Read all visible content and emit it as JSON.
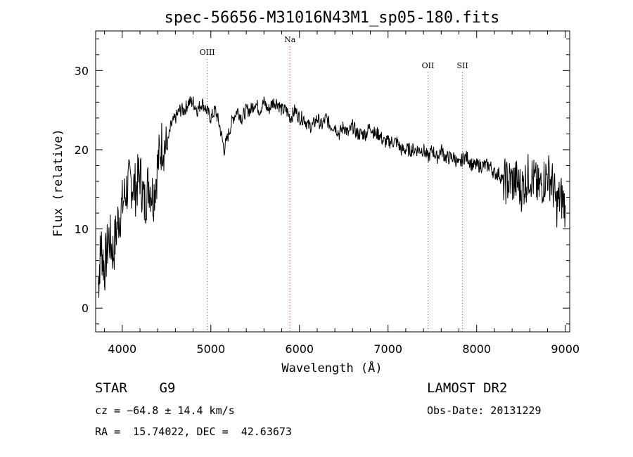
{
  "chart_data": {
    "type": "line",
    "title": "spec-56656-M31016N43M1_sp05-180.fits",
    "xlabel": "Wavelength (Å)",
    "ylabel": "Flux (relative)",
    "xlim": [
      3700,
      9050
    ],
    "ylim": [
      -3,
      35
    ],
    "xticks": [
      4000,
      5000,
      6000,
      7000,
      8000,
      9000
    ],
    "yticks": [
      0,
      10,
      20,
      30
    ],
    "grid": false,
    "series": [
      {
        "x": [
          3730,
          3760,
          3800,
          3850,
          3900,
          3950,
          4000,
          4050,
          4100,
          4150,
          4200,
          4250,
          4300,
          4350,
          4400,
          4450,
          4500,
          4550,
          4600,
          4650,
          4700,
          4750,
          4800,
          4850,
          4900,
          4950,
          5000,
          5050,
          5100,
          5150,
          5200,
          5250,
          5300,
          5350,
          5400,
          5450,
          5500,
          5550,
          5600,
          5650,
          5700,
          5750,
          5800,
          5850,
          5900,
          5950,
          6000,
          6050,
          6100,
          6150,
          6200,
          6250,
          6300,
          6350,
          6400,
          6450,
          6500,
          6550,
          6600,
          6650,
          6700,
          6750,
          6800,
          6850,
          6900,
          6950,
          7000,
          7050,
          7100,
          7150,
          7200,
          7250,
          7300,
          7350,
          7400,
          7450,
          7500,
          7550,
          7600,
          7650,
          7700,
          7750,
          7800,
          7850,
          7900,
          7950,
          8000,
          8050,
          8100,
          8150,
          8200,
          8250,
          8300,
          8350,
          8400,
          8450,
          8500,
          8550,
          8600,
          8650,
          8700,
          8750,
          8800,
          8850,
          8900,
          8950,
          9000
        ],
        "y": [
          3,
          8,
          5,
          9,
          7,
          11,
          13,
          15,
          16,
          15,
          17,
          13,
          16,
          14,
          18,
          21,
          20,
          23,
          24,
          25,
          25,
          26,
          26,
          25,
          26,
          25,
          24,
          25,
          23,
          20,
          22,
          24,
          25,
          24,
          25,
          25,
          26,
          25,
          26,
          25,
          26,
          26,
          25,
          25,
          24,
          25,
          24,
          24,
          23,
          23,
          24,
          23,
          24,
          23,
          23,
          22,
          23,
          22,
          23,
          22,
          22,
          22,
          23,
          22,
          22,
          21,
          21,
          21,
          21,
          20,
          20,
          20,
          20,
          20,
          20,
          19,
          20,
          19,
          20,
          19,
          19,
          19,
          18,
          19,
          19,
          18,
          18,
          18,
          18,
          18,
          17,
          17,
          16,
          16,
          16,
          16,
          15,
          16,
          17,
          16,
          15,
          16,
          17,
          16,
          13,
          14,
          13
        ]
      }
    ],
    "lines": [
      {
        "name": "OIII",
        "x": 4959
      },
      {
        "name": "Na",
        "x": 5893
      },
      {
        "name": "OII",
        "x": 7450
      },
      {
        "name": "SII",
        "x": 7840
      }
    ]
  },
  "info": {
    "class": "STAR    G9",
    "cz": "cz = −64.8 ± 14.4 km/s",
    "coords": "RA =  15.74022, DEC =  42.63673",
    "survey": "LAMOST DR2",
    "obs_date": "Obs-Date: 20131229"
  }
}
